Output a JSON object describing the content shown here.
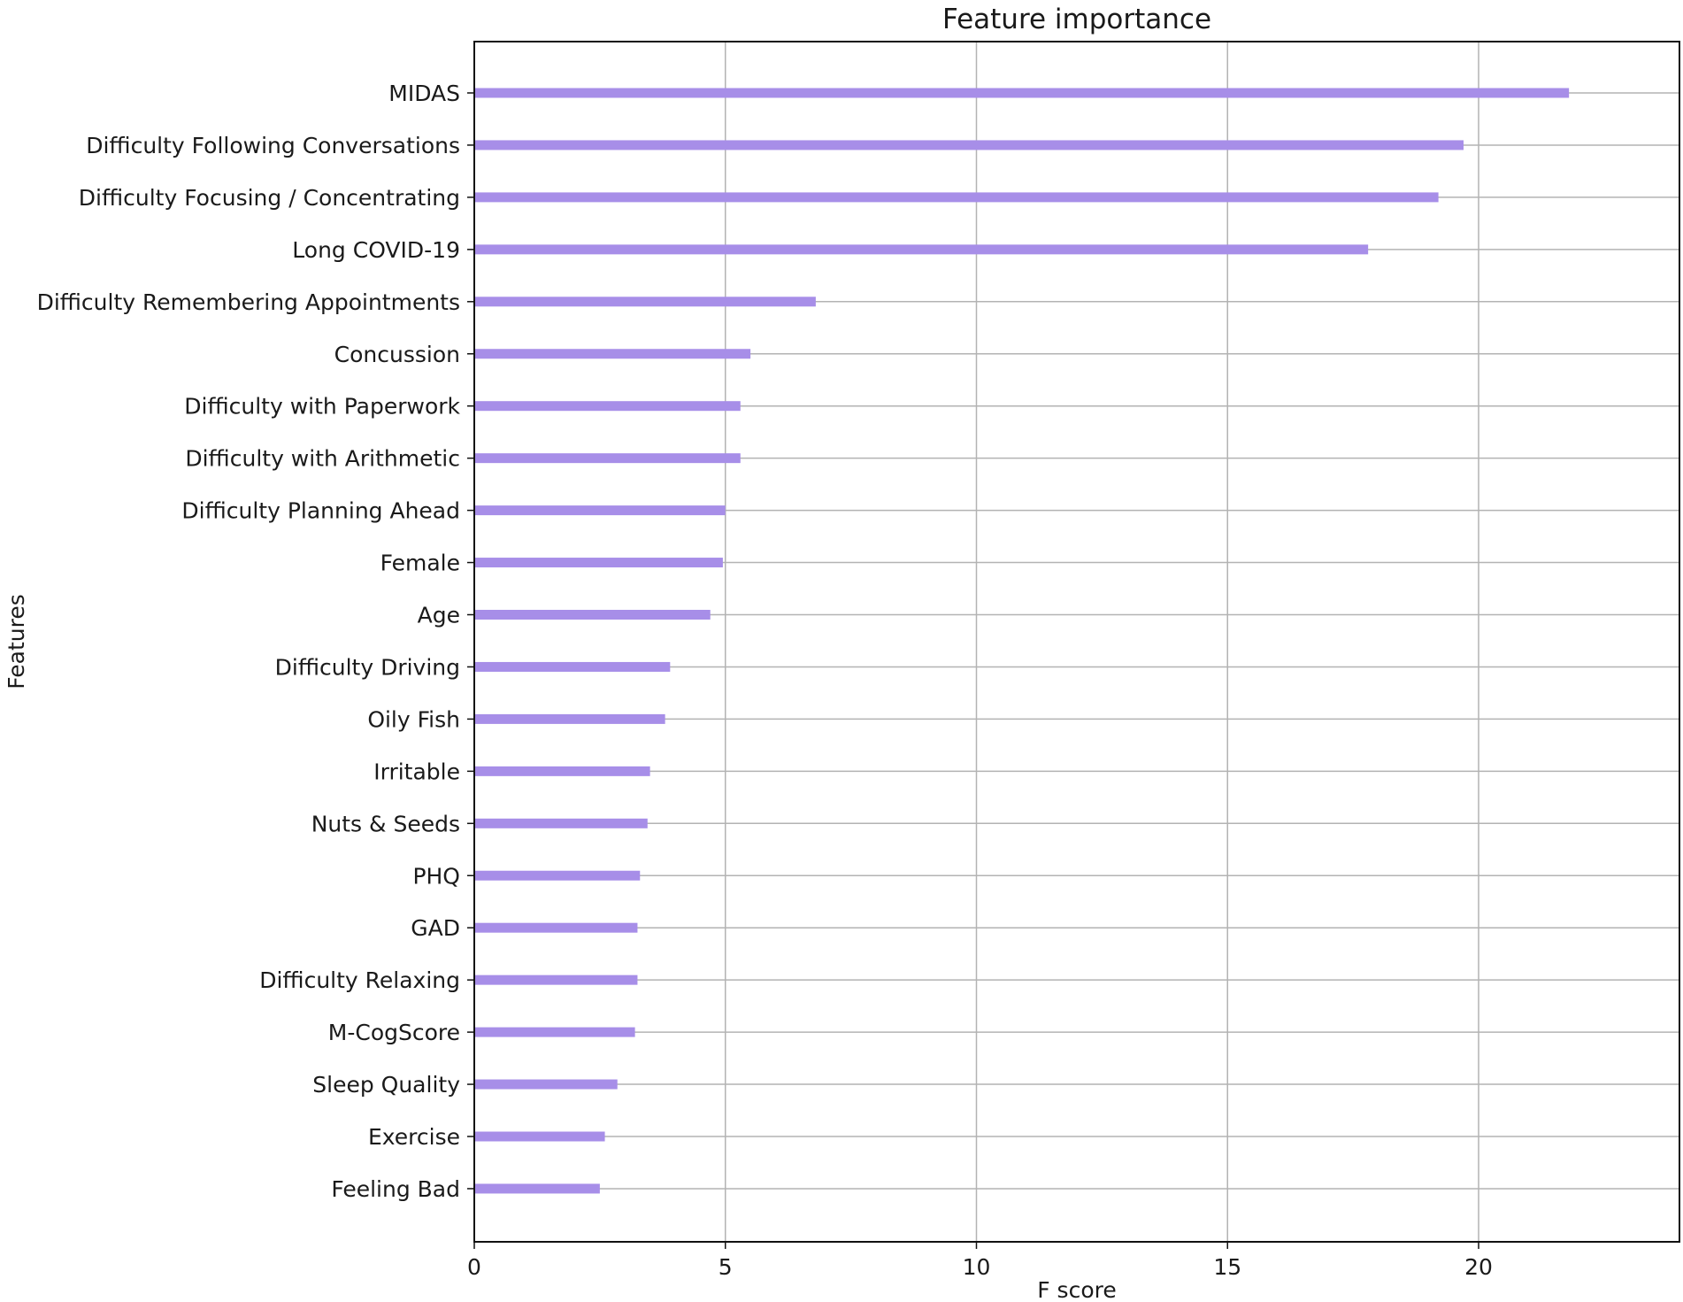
{
  "chart_data": {
    "type": "bar",
    "orientation": "horizontal",
    "title": "Feature importance",
    "xlabel": "F score",
    "ylabel": "Features",
    "xlim": [
      0,
      24
    ],
    "xticks": [
      0,
      5,
      10,
      15,
      20
    ],
    "grid": true,
    "bar_color": "#a78ee8",
    "categories": [
      "MIDAS",
      "Difficulty Following Conversations",
      "Difficulty Focusing / Concentrating",
      "Long COVID-19",
      "Difficulty Remembering Appointments",
      "Concussion",
      "Difficulty with Paperwork",
      "Difficulty with Arithmetic",
      "Difficulty Planning Ahead",
      "Female",
      "Age",
      "Difficulty Driving",
      "Oily Fish",
      "Irritable",
      "Nuts & Seeds",
      "PHQ",
      "GAD",
      "Difficulty Relaxing",
      "M-CogScore",
      "Sleep Quality",
      "Exercise",
      "Feeling Bad"
    ],
    "values": [
      21.8,
      19.7,
      19.2,
      17.8,
      6.8,
      5.5,
      5.3,
      5.3,
      5.0,
      4.95,
      4.7,
      3.9,
      3.8,
      3.5,
      3.45,
      3.3,
      3.25,
      3.25,
      3.2,
      2.85,
      2.6,
      2.5
    ]
  }
}
